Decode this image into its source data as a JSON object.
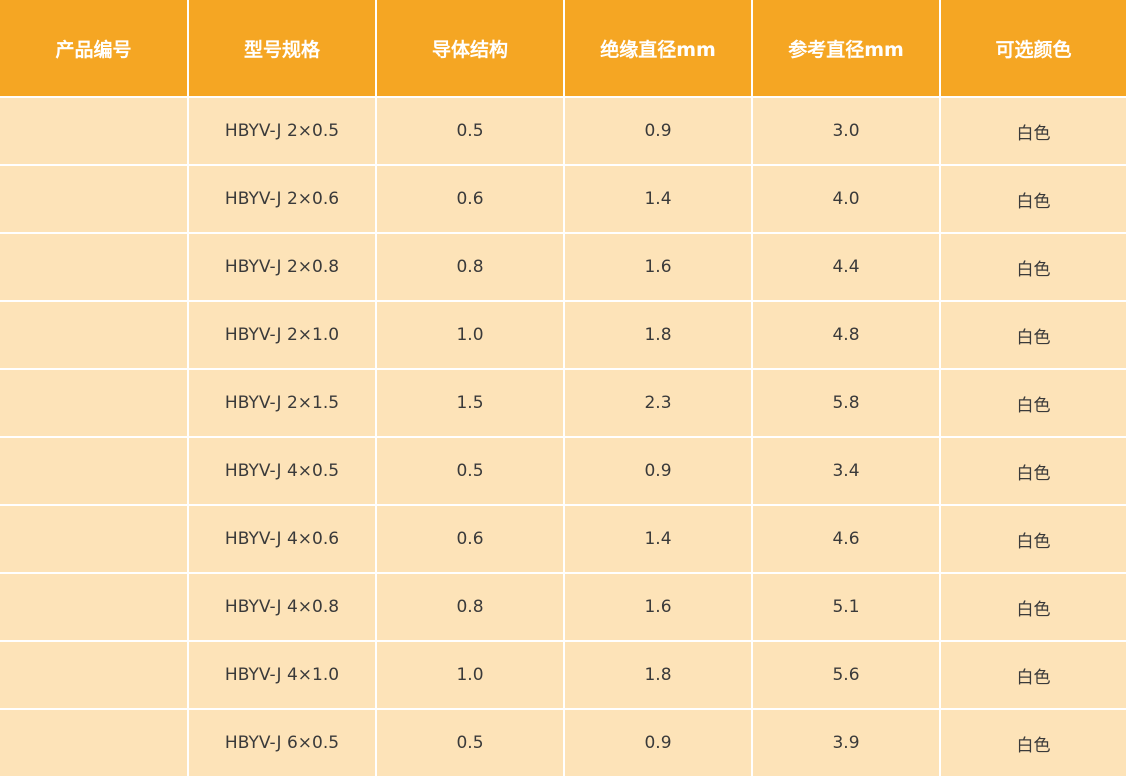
{
  "table": {
    "headers": [
      "产品编号",
      "型号规格",
      "导体结构",
      "绝缘直径mm",
      "参考直径mm",
      "可选颜色"
    ],
    "rows": [
      [
        "",
        "HBYV-J 2×0.5",
        "0.5",
        "0.9",
        "3.0",
        "白色"
      ],
      [
        "",
        "HBYV-J 2×0.6",
        "0.6",
        "1.4",
        "4.0",
        "白色"
      ],
      [
        "",
        "HBYV-J 2×0.8",
        "0.8",
        "1.6",
        "4.4",
        "白色"
      ],
      [
        "",
        "HBYV-J 2×1.0",
        "1.0",
        "1.8",
        "4.8",
        "白色"
      ],
      [
        "",
        "HBYV-J 2×1.5",
        "1.5",
        "2.3",
        "5.8",
        "白色"
      ],
      [
        "",
        "HBYV-J 4×0.5",
        "0.5",
        "0.9",
        "3.4",
        "白色"
      ],
      [
        "",
        "HBYV-J 4×0.6",
        "0.6",
        "1.4",
        "4.6",
        "白色"
      ],
      [
        "",
        "HBYV-J 4×0.8",
        "0.8",
        "1.6",
        "5.1",
        "白色"
      ],
      [
        "",
        "HBYV-J 4×1.0",
        "1.0",
        "1.8",
        "5.6",
        "白色"
      ],
      [
        "",
        "HBYV-J 6×0.5",
        "0.5",
        "0.9",
        "3.9",
        "白色"
      ]
    ]
  },
  "colors": {
    "header_bg": "#f5a623",
    "row_bg": "#fde3b8",
    "header_text": "#ffffff",
    "body_text": "#3a3a3a"
  }
}
